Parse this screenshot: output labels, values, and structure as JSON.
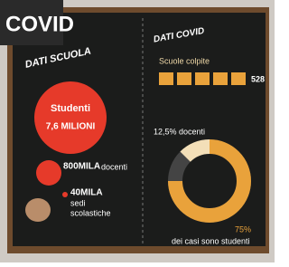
{
  "header": {
    "title": "COVID"
  },
  "school": {
    "heading": "DATI SCUOLA",
    "students_label": "Studenti",
    "students_value": "7,6 MILIONI",
    "teachers_value": "800MILA",
    "teachers_label": "docenti",
    "sites_value": "40MILA",
    "sites_label_1": "sedi",
    "sites_label_2": "scolastiche"
  },
  "covid": {
    "heading": "DATI COVID",
    "schools_label": "Scuole colpite",
    "schools_value": "528",
    "donut": {
      "values": [
        12.5,
        75
      ],
      "value_labels": [
        "12,5% docenti",
        "75%"
      ],
      "colors": [
        "#f3dfb8",
        "#e9a23b"
      ],
      "caption": "dei casi sono studenti"
    }
  }
}
